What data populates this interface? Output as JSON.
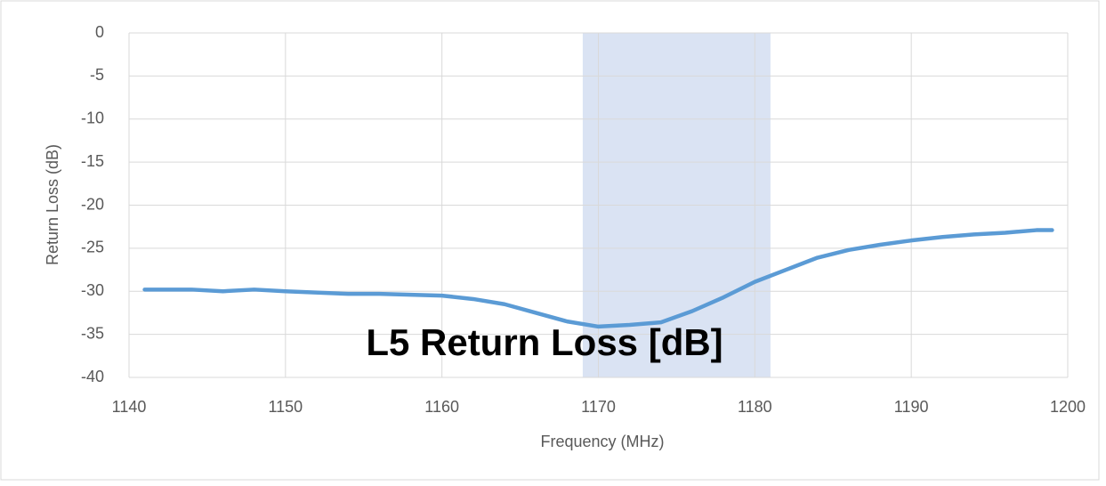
{
  "chart_data": {
    "type": "line",
    "title": "L5 Return Loss [dB]",
    "x_label": "Frequency (MHz)",
    "y_label": "Return Loss (dB)",
    "x": [
      1141,
      1144,
      1146,
      1148,
      1150,
      1154,
      1156,
      1160,
      1162,
      1164,
      1166,
      1168,
      1170,
      1172,
      1174,
      1176,
      1178,
      1180,
      1182,
      1184,
      1186,
      1188,
      1190,
      1192,
      1194,
      1196,
      1198,
      1199
    ],
    "series": [
      {
        "color": "#5b9bd5",
        "values": [
          -29.8,
          -29.8,
          -30.0,
          -29.8,
          -30.0,
          -30.3,
          -30.3,
          -30.5,
          -30.9,
          -31.5,
          -32.5,
          -33.5,
          -34.1,
          -33.9,
          -33.6,
          -32.3,
          -30.7,
          -28.9,
          -27.5,
          -26.1,
          -25.2,
          -24.6,
          -24.1,
          -23.7,
          -23.4,
          -23.2,
          -22.9,
          -22.9
        ]
      }
    ],
    "shaded_region": [
      1169,
      1181
    ],
    "shaded_color": "#dae3f3",
    "xlim": [
      1140,
      1200
    ],
    "xticks": [
      1140,
      1150,
      1160,
      1170,
      1180,
      1190,
      1200
    ],
    "ylim": [
      -40,
      0
    ],
    "yticks": [
      0,
      -5,
      -10,
      -15,
      -20,
      -25,
      -30,
      -35,
      -40
    ],
    "grid": true
  }
}
